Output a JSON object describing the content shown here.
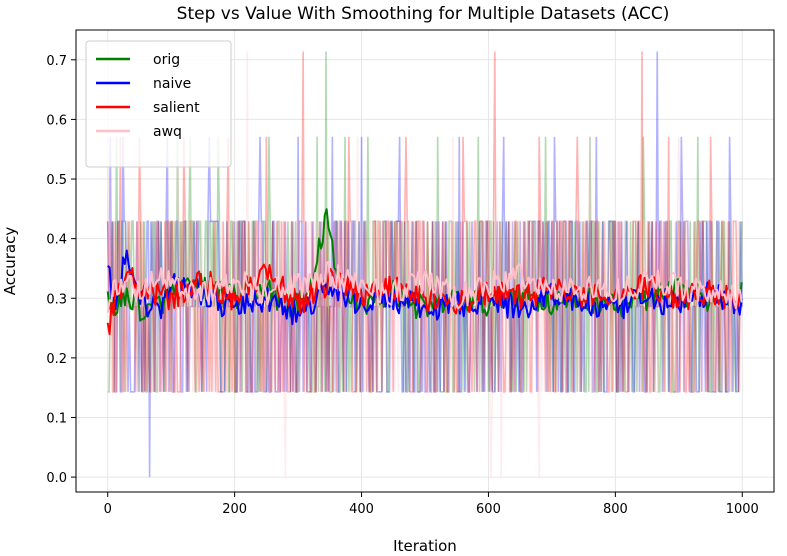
{
  "chart_data": {
    "type": "line",
    "title": "Step vs Value With Smoothing for Multiple Datasets (ACC)",
    "xlabel": "Iteration",
    "ylabel": "Accuracy",
    "xlim": [
      -50,
      1050
    ],
    "ylim": [
      -0.025,
      0.75
    ],
    "xticks": [
      0,
      200,
      400,
      600,
      800,
      1000
    ],
    "xtick_labels": [
      "0",
      "200",
      "400",
      "600",
      "800",
      "1000"
    ],
    "yticks": [
      0.0,
      0.1,
      0.2,
      0.3,
      0.4,
      0.5,
      0.6,
      0.7
    ],
    "ytick_labels": [
      "0.0",
      "0.1",
      "0.2",
      "0.3",
      "0.4",
      "0.5",
      "0.6",
      "0.7"
    ],
    "grid": true,
    "legend_position": "top-left",
    "raw_levels": [
      0.143,
      0.286,
      0.429
    ],
    "series": [
      {
        "name": "orig",
        "color": "#008000",
        "raw_spikes": [
          [
            15,
            0.571
          ],
          [
            110,
            0.571
          ],
          [
            130,
            0.571
          ],
          [
            175,
            0.571
          ],
          [
            255,
            0.571
          ],
          [
            330,
            0.571
          ],
          [
            345,
            0.714
          ],
          [
            375,
            0.571
          ],
          [
            410,
            0.571
          ],
          [
            520,
            0.571
          ],
          [
            585,
            0.571
          ],
          [
            690,
            0.571
          ],
          [
            760,
            0.571
          ],
          [
            845,
            0.571
          ],
          [
            930,
            0.571
          ]
        ],
        "smoothed_anchors": [
          [
            0,
            0.29
          ],
          [
            40,
            0.3
          ],
          [
            60,
            0.27
          ],
          [
            100,
            0.31
          ],
          [
            150,
            0.32
          ],
          [
            200,
            0.3
          ],
          [
            250,
            0.32
          ],
          [
            280,
            0.28
          ],
          [
            320,
            0.31
          ],
          [
            345,
            0.445
          ],
          [
            360,
            0.33
          ],
          [
            400,
            0.29
          ],
          [
            450,
            0.31
          ],
          [
            500,
            0.28
          ],
          [
            550,
            0.3
          ],
          [
            600,
            0.29
          ],
          [
            650,
            0.31
          ],
          [
            700,
            0.29
          ],
          [
            750,
            0.3
          ],
          [
            800,
            0.29
          ],
          [
            850,
            0.3
          ],
          [
            900,
            0.31
          ],
          [
            950,
            0.3
          ],
          [
            1000,
            0.31
          ]
        ]
      },
      {
        "name": "naive",
        "color": "#0000ff",
        "raw_spikes": [
          [
            5,
            0.571
          ],
          [
            25,
            0.571
          ],
          [
            67,
            0.0
          ],
          [
            95,
            0.571
          ],
          [
            160,
            0.571
          ],
          [
            240,
            0.571
          ],
          [
            300,
            0.571
          ],
          [
            355,
            0.571
          ],
          [
            400,
            0.571
          ],
          [
            460,
            0.571
          ],
          [
            555,
            0.571
          ],
          [
            625,
            0.571
          ],
          [
            705,
            0.571
          ],
          [
            770,
            0.571
          ],
          [
            866,
            0.714
          ],
          [
            905,
            0.571
          ],
          [
            980,
            0.571
          ]
        ],
        "smoothed_anchors": [
          [
            0,
            0.37
          ],
          [
            10,
            0.28
          ],
          [
            30,
            0.38
          ],
          [
            50,
            0.3
          ],
          [
            80,
            0.28
          ],
          [
            110,
            0.33
          ],
          [
            150,
            0.31
          ],
          [
            200,
            0.28
          ],
          [
            250,
            0.3
          ],
          [
            300,
            0.27
          ],
          [
            350,
            0.32
          ],
          [
            400,
            0.29
          ],
          [
            450,
            0.3
          ],
          [
            500,
            0.28
          ],
          [
            550,
            0.29
          ],
          [
            600,
            0.3
          ],
          [
            650,
            0.28
          ],
          [
            700,
            0.31
          ],
          [
            750,
            0.29
          ],
          [
            800,
            0.28
          ],
          [
            850,
            0.3
          ],
          [
            900,
            0.29
          ],
          [
            950,
            0.31
          ],
          [
            1000,
            0.28
          ]
        ]
      },
      {
        "name": "salient",
        "color": "#ff0000",
        "raw_spikes": [
          [
            20,
            0.571
          ],
          [
            50,
            0.571
          ],
          [
            120,
            0.571
          ],
          [
            190,
            0.571
          ],
          [
            250,
            0.571
          ],
          [
            308,
            0.714
          ],
          [
            380,
            0.571
          ],
          [
            470,
            0.571
          ],
          [
            560,
            0.571
          ],
          [
            610,
            0.714
          ],
          [
            680,
            0.571
          ],
          [
            740,
            0.571
          ],
          [
            842,
            0.714
          ],
          [
            885,
            0.571
          ],
          [
            950,
            0.571
          ]
        ],
        "smoothed_anchors": [
          [
            0,
            0.25
          ],
          [
            10,
            0.29
          ],
          [
            30,
            0.34
          ],
          [
            60,
            0.31
          ],
          [
            100,
            0.3
          ],
          [
            150,
            0.33
          ],
          [
            200,
            0.3
          ],
          [
            250,
            0.34
          ],
          [
            300,
            0.29
          ],
          [
            350,
            0.33
          ],
          [
            400,
            0.31
          ],
          [
            450,
            0.32
          ],
          [
            500,
            0.3
          ],
          [
            550,
            0.29
          ],
          [
            600,
            0.31
          ],
          [
            650,
            0.3
          ],
          [
            700,
            0.32
          ],
          [
            750,
            0.3
          ],
          [
            800,
            0.31
          ],
          [
            850,
            0.32
          ],
          [
            900,
            0.3
          ],
          [
            950,
            0.31
          ],
          [
            1000,
            0.3
          ]
        ]
      },
      {
        "name": "awq",
        "color": "#ffc0cb",
        "raw_spikes": [
          [
            3,
            0.571
          ],
          [
            110,
            0.571
          ],
          [
            220,
            0.714
          ],
          [
            280,
            0.0
          ],
          [
            395,
            0.571
          ],
          [
            545,
            0.571
          ],
          [
            605,
            0.0
          ],
          [
            620,
            0.0
          ],
          [
            680,
            0.0
          ],
          [
            760,
            0.571
          ],
          [
            900,
            0.571
          ]
        ],
        "smoothed_anchors": [
          [
            0,
            0.29
          ],
          [
            20,
            0.33
          ],
          [
            50,
            0.31
          ],
          [
            80,
            0.34
          ],
          [
            110,
            0.32
          ],
          [
            150,
            0.31
          ],
          [
            200,
            0.33
          ],
          [
            250,
            0.31
          ],
          [
            300,
            0.32
          ],
          [
            350,
            0.34
          ],
          [
            400,
            0.32
          ],
          [
            450,
            0.31
          ],
          [
            500,
            0.33
          ],
          [
            550,
            0.3
          ],
          [
            600,
            0.32
          ],
          [
            650,
            0.34
          ],
          [
            700,
            0.31
          ],
          [
            750,
            0.32
          ],
          [
            800,
            0.31
          ],
          [
            850,
            0.33
          ],
          [
            900,
            0.32
          ],
          [
            950,
            0.31
          ],
          [
            1000,
            0.3
          ]
        ]
      }
    ]
  }
}
